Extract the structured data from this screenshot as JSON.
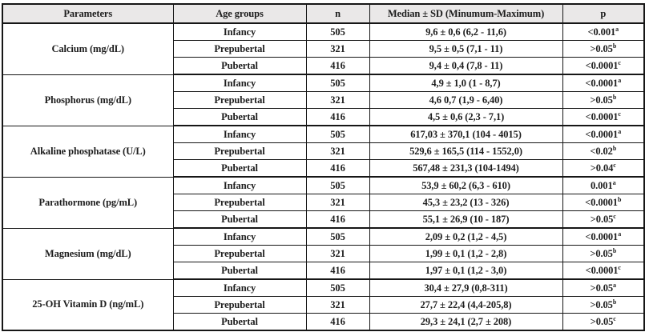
{
  "table": {
    "headers": {
      "parameters": "Parameters",
      "age_groups": "Age groups",
      "n": "n",
      "median": "Median ± SD (Minumum-Maximum)",
      "p": "p"
    },
    "groups": [
      {
        "parameter": "Calcium (mg/dL)",
        "rows": [
          {
            "age": "Infancy",
            "n": "505",
            "median": "9,6 ± 0,6 (6,2 - 11,6)",
            "p": "<0.001",
            "p_sup": "a"
          },
          {
            "age": "Prepubertal",
            "n": "321",
            "median": "9,5 ± 0,5 (7,1 - 11)",
            "p": ">0.05",
            "p_sup": "b"
          },
          {
            "age": "Pubertal",
            "n": "416",
            "median": "9,4 ± 0,4 (7,8 - 11)",
            "p": "<0.0001",
            "p_sup": "c"
          }
        ]
      },
      {
        "parameter": "Phosphorus (mg/dL)",
        "rows": [
          {
            "age": "Infancy",
            "n": "505",
            "median": "4,9 ± 1,0 (1 - 8,7)",
            "p": "<0.0001",
            "p_sup": "a"
          },
          {
            "age": "Prepubertal",
            "n": "321",
            "median": "4,6 0,7 (1,9 - 6,40)",
            "p": ">0.05",
            "p_sup": "b"
          },
          {
            "age": "Pubertal",
            "n": "416",
            "median": "4,5 ± 0,6 (2,3 - 7,1)",
            "p": "<0.0001",
            "p_sup": "c"
          }
        ]
      },
      {
        "parameter": "Alkaline phosphatase (U/L)",
        "rows": [
          {
            "age": "Infancy",
            "n": "505",
            "median": "617,03 ± 370,1 (104 - 4015)",
            "p": "<0.0001",
            "p_sup": "a"
          },
          {
            "age": "Prepubertal",
            "n": "321",
            "median": "529,6 ± 165,5 (114 - 1552,0)",
            "p": "<0.02",
            "p_sup": "b"
          },
          {
            "age": "Pubertal",
            "n": "416",
            "median": "567,48 ± 231,3 (104-1494)",
            "p": ">0.04",
            "p_sup": "c"
          }
        ]
      },
      {
        "parameter": "Parathormone (pg/mL)",
        "rows": [
          {
            "age": "Infancy",
            "n": "505",
            "median": "53,9 ± 60,2 (6,3 - 610)",
            "p": "0.001",
            "p_sup": "a"
          },
          {
            "age": "Prepubertal",
            "n": "321",
            "median": "45,3 ± 23,2 (13 - 326)",
            "p": "<0.0001",
            "p_sup": "b"
          },
          {
            "age": "Pubertal",
            "n": "416",
            "median": "55,1 ± 26,9 (10 - 187)",
            "p": ">0.05",
            "p_sup": "c"
          }
        ]
      },
      {
        "parameter": "Magnesium (mg/dL)",
        "rows": [
          {
            "age": "Infancy",
            "n": "505",
            "median": "2,09 ± 0,2 (1,2 - 4,5)",
            "p": "<0.0001",
            "p_sup": "a"
          },
          {
            "age": "Prepubertal",
            "n": "321",
            "median": "1,99 ± 0,1 (1,2 - 2,8)",
            "p": ">0.05",
            "p_sup": "b"
          },
          {
            "age": "Pubertal",
            "n": "416",
            "median": "1,97 ± 0,1 (1,2 - 3,0)",
            "p": "<0.0001",
            "p_sup": "c"
          }
        ]
      },
      {
        "parameter": "25-OH Vitamin D (ng/mL)",
        "rows": [
          {
            "age": "Infancy",
            "n": "505",
            "median": "30,4 ± 27,9 (0,8-311)",
            "p": ">0.05",
            "p_sup": "a"
          },
          {
            "age": "Prepubertal",
            "n": "321",
            "median": "27,7 ± 22,4 (4,4-205,8)",
            "p": ">0.05",
            "p_sup": "b"
          },
          {
            "age": "Pubertal",
            "n": "416",
            "median": "29,3 ± 24,1 (2,7 ± 208)",
            "p": ">0.05",
            "p_sup": "c"
          }
        ]
      }
    ]
  },
  "colors": {
    "header_bg": "#eae8e8",
    "border": "#161616",
    "text": "#1d1d1d"
  }
}
